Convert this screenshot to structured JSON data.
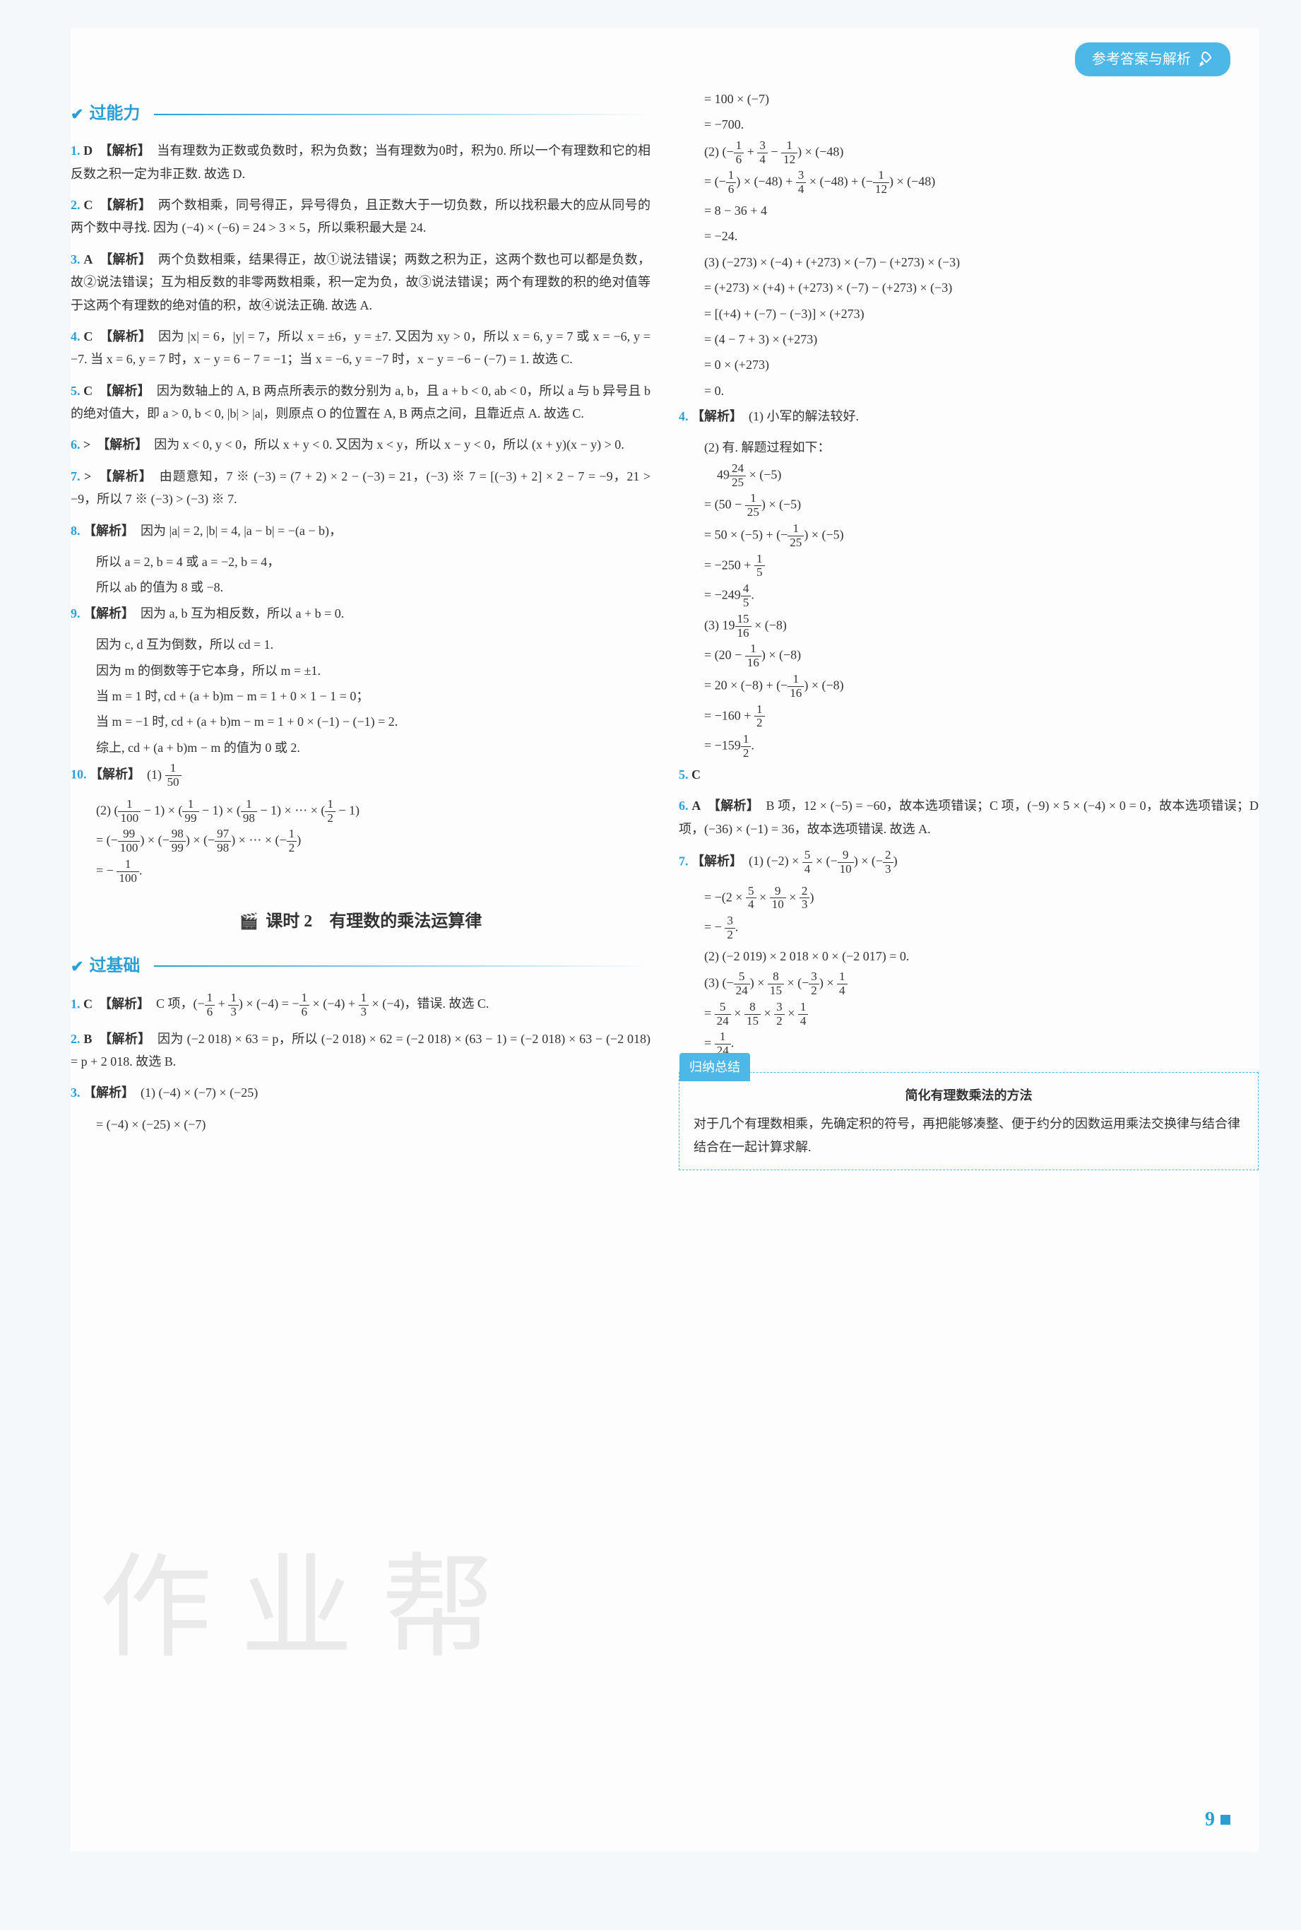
{
  "header_badge": "参考答案与解析",
  "page_number": "9",
  "watermark": "作业帮",
  "colors": {
    "accent": "#2a9fd6",
    "badge_bg": "#4db8e8",
    "text": "#333333",
    "bg": "#fdfdfd"
  },
  "left": {
    "section1_title": "过能力",
    "items": [
      {
        "num": "1.",
        "ans": "D",
        "tag": "【解析】",
        "text": "当有理数为正数或负数时，积为负数；当有理数为0时，积为0. 所以一个有理数和它的相反数之积一定为非正数. 故选 D."
      },
      {
        "num": "2.",
        "ans": "C",
        "tag": "【解析】",
        "text": "两个数相乘，同号得正，异号得负，且正数大于一切负数，所以找积最大的应从同号的两个数中寻找. 因为 (−4) × (−6) = 24 > 3 × 5，所以乘积最大是 24."
      },
      {
        "num": "3.",
        "ans": "A",
        "tag": "【解析】",
        "text": "两个负数相乘，结果得正，故①说法错误；两数之积为正，这两个数也可以都是负数，故②说法错误；互为相反数的非零两数相乘，积一定为负，故③说法错误；两个有理数的积的绝对值等于这两个有理数的绝对值的积，故④说法正确. 故选 A."
      },
      {
        "num": "4.",
        "ans": "C",
        "tag": "【解析】",
        "text": "因为 |x| = 6，|y| = 7，所以 x = ±6，y = ±7. 又因为 xy > 0，所以 x = 6, y = 7 或 x = −6, y = −7. 当 x = 6, y = 7 时，x − y = 6 − 7 = −1；当 x = −6, y = −7 时，x − y = −6 − (−7) = 1. 故选 C."
      },
      {
        "num": "5.",
        "ans": "C",
        "tag": "【解析】",
        "text": "因为数轴上的 A, B 两点所表示的数分别为 a, b，且 a + b < 0, ab < 0，所以 a 与 b 异号且 b 的绝对值大，即 a > 0, b < 0, |b| > |a|，则原点 O 的位置在 A, B 两点之间，且靠近点 A. 故选 C."
      },
      {
        "num": "6.",
        "ans": ">",
        "tag": "【解析】",
        "text": "因为 x < 0, y < 0，所以 x + y < 0. 又因为 x < y，所以 x − y < 0，所以 (x + y)(x − y) > 0."
      },
      {
        "num": "7.",
        "ans": ">",
        "tag": "【解析】",
        "text": "由题意知，7 ※ (−3) = (7 + 2) × 2 − (−3) = 21，(−3) ※ 7 = [(−3) + 2] × 2 − 7 = −9，21 > −9，所以 7 ※ (−3) > (−3) ※ 7."
      },
      {
        "num": "8.",
        "ans": "",
        "tag": "【解析】",
        "text": "因为 |a| = 2, |b| = 4, |a − b| = −(a − b)，",
        "lines": [
          "所以 a = 2, b = 4 或 a = −2, b = 4，",
          "所以 ab 的值为 8 或 −8."
        ]
      },
      {
        "num": "9.",
        "ans": "",
        "tag": "【解析】",
        "text": "因为 a, b 互为相反数，所以 a + b = 0.",
        "lines": [
          "因为 c, d 互为倒数，所以 cd = 1.",
          "因为 m 的倒数等于它本身，所以 m = ±1.",
          "当 m = 1 时, cd + (a + b)m − m = 1 + 0 × 1 − 1 = 0；",
          "当 m = −1 时, cd + (a + b)m − m = 1 + 0 × (−1) − (−1) = 2.",
          "综上, cd + (a + b)m − m 的值为 0 或 2."
        ]
      },
      {
        "num": "10.",
        "ans": "",
        "tag": "【解析】",
        "text": "(1) 1/50",
        "lines": [
          "(2) (1/100 − 1) × (1/99 − 1) × (1/98 − 1) × ⋯ × (1/2 − 1)",
          "= (−99/100) × (−98/99) × (−97/98) × ⋯ × (−1/2)",
          "= − 1/100."
        ]
      }
    ],
    "lesson_title": "课时 2　有理数的乘法运算律",
    "section2_title": "过基础",
    "items2": [
      {
        "num": "1.",
        "ans": "C",
        "tag": "【解析】",
        "text": "C 项，(−1/6 + 1/3) × (−4) = −1/6 × (−4) + 1/3 × (−4)，错误. 故选 C."
      },
      {
        "num": "2.",
        "ans": "B",
        "tag": "【解析】",
        "text": "因为 (−2 018) × 63 = p，所以 (−2 018) × 62 = (−2 018) × (63 − 1) = (−2 018) × 63 − (−2 018) = p + 2 018. 故选 B."
      },
      {
        "num": "3.",
        "ans": "",
        "tag": "【解析】",
        "text": "(1) (−4) × (−7) × (−25)",
        "lines": [
          "= (−4) × (−25) × (−7)"
        ]
      }
    ]
  },
  "right": {
    "cont3": [
      "= 100 × (−7)",
      "= −700.",
      "(2) (−1/6 + 3/4 − 1/12) × (−48)",
      "= (−1/6) × (−48) + 3/4 × (−48) + (−1/12) × (−48)",
      "= 8 − 36 + 4",
      "= −24.",
      "(3) (−273) × (−4) + (+273) × (−7) − (+273) × (−3)",
      "= (+273) × (+4) + (+273) × (−7) − (+273) × (−3)",
      "= [(+4) + (−7) − (−3)] × (+273)",
      "= (4 − 7 + 3) × (+273)",
      "= 0 × (+273)",
      "= 0."
    ],
    "items": [
      {
        "num": "4.",
        "ans": "",
        "tag": "【解析】",
        "text": "(1) 小军的解法较好.",
        "lines": [
          "(2) 有. 解题过程如下：",
          "　49 24/25 × (−5)",
          "= (50 − 1/25) × (−5)",
          "= 50 × (−5) + (−1/25) × (−5)",
          "= −250 + 1/5",
          "= −249 4/5.",
          "(3) 19 15/16 × (−8)",
          "= (20 − 1/16) × (−8)",
          "= 20 × (−8) + (−1/16) × (−8)",
          "= −160 + 1/2",
          "= −159 1/2."
        ]
      },
      {
        "num": "5.",
        "ans": "C",
        "tag": "",
        "text": ""
      },
      {
        "num": "6.",
        "ans": "A",
        "tag": "【解析】",
        "text": "B 项，12 × (−5) = −60，故本选项错误；C 项，(−9) × 5 × (−4) × 0 = 0，故本选项错误；D 项，(−36) × (−1) = 36，故本选项错误. 故选 A."
      },
      {
        "num": "7.",
        "ans": "",
        "tag": "【解析】",
        "text": "(1) (−2) × 5/4 × (−9/10) × (−2/3)",
        "lines": [
          "= −(2 × 5/4 × 9/10 × 2/3)",
          "= − 3/2.",
          "(2) (−2 019) × 2 018 × 0 × (−2 017) = 0.",
          "(3) (−5/24) × 8/15 × (−3/2) × 1/4",
          "= 5/24 × 8/15 × 3/2 × 1/4",
          "= 1/24."
        ]
      }
    ],
    "summary_label": "归纳总结",
    "summary_title": "简化有理数乘法的方法",
    "summary_text": "对于几个有理数相乘，先确定积的符号，再把能够凑整、便于约分的因数运用乘法交换律与结合律结合在一起计算求解."
  }
}
